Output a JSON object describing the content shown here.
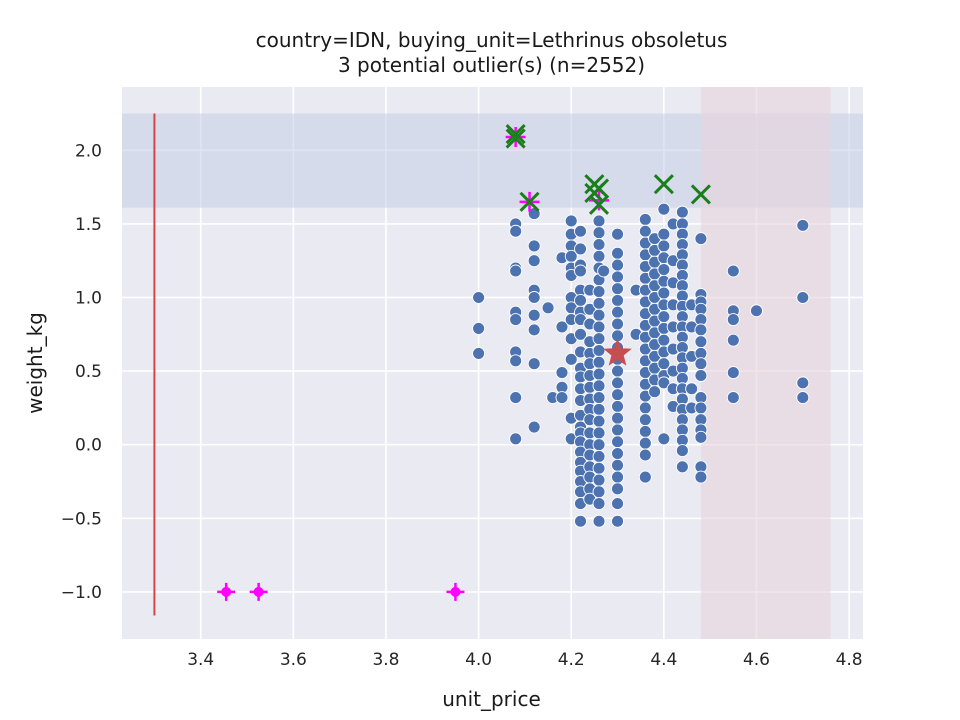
{
  "chart_data": {
    "type": "scatter",
    "title": "country=IDN, buying_unit=Lethrinus obsoletus",
    "subtitle": "3 potential outlier(s) (n=2552)",
    "xlabel": "unit_price",
    "ylabel": "weight_kg",
    "xlim": [
      3.23,
      4.83
    ],
    "ylim": [
      -1.32,
      2.43
    ],
    "xticks": [
      3.4,
      3.6,
      3.8,
      4.0,
      4.2,
      4.4,
      4.6,
      4.8
    ],
    "yticks": [
      -1.0,
      -0.5,
      0.0,
      0.5,
      1.0,
      1.5,
      2.0
    ],
    "xtick_labels": [
      "3.4",
      "3.6",
      "3.8",
      "4.0",
      "4.2",
      "4.4",
      "4.6",
      "4.8"
    ],
    "ytick_labels": [
      "−1.0",
      "−0.5",
      "0.0",
      "0.5",
      "1.0",
      "1.5",
      "2.0"
    ],
    "grid": true,
    "colors": {
      "background": "#eaeaf2",
      "points": "#4c72b0",
      "outlier_x": "#1a7f1a",
      "magenta": "#ff00ff",
      "star": "#c44e52",
      "vline": "#d64545",
      "y_band": "#c5cde6",
      "x_band": "#e8d4dc"
    },
    "y_band": [
      1.61,
      2.25
    ],
    "x_band": [
      4.48,
      4.76
    ],
    "vline": {
      "x": 3.3,
      "y": [
        -1.16,
        2.25
      ]
    },
    "star": {
      "x": 4.3,
      "y": 0.62
    },
    "series": [
      {
        "kind": "points",
        "columns": [
          {
            "x": 4.0,
            "y": [
              1.0,
              0.79,
              0.62
            ]
          },
          {
            "x": 4.08,
            "y": [
              1.5,
              1.45,
              1.2,
              1.18,
              0.9,
              0.85,
              0.63,
              0.57,
              0.32,
              0.04
            ]
          },
          {
            "x": 4.12,
            "y": [
              1.57,
              1.35,
              1.25,
              1.05,
              1.0,
              0.88,
              0.78,
              0.55,
              0.12
            ]
          },
          {
            "x": 4.15,
            "y": [
              0.93
            ]
          },
          {
            "x": 4.16,
            "y": [
              0.32
            ]
          },
          {
            "x": 4.18,
            "y": [
              1.27,
              0.8,
              0.49,
              0.39,
              0.32
            ]
          },
          {
            "x": 4.2,
            "y": [
              1.52,
              1.43,
              1.35,
              1.28,
              1.2,
              1.15,
              1.0,
              0.93,
              0.85,
              0.72,
              0.58,
              0.18,
              0.04
            ]
          },
          {
            "x": 4.22,
            "y": [
              1.45,
              1.33,
              1.22,
              1.18,
              1.05,
              0.98,
              0.9,
              0.85,
              0.75,
              0.63,
              0.52,
              0.46,
              0.38,
              0.3,
              0.2,
              0.12,
              0.08,
              0.02,
              -0.05,
              -0.12,
              -0.18,
              -0.25,
              -0.32,
              -0.4,
              -0.52
            ]
          },
          {
            "x": 4.24,
            "y": [
              1.05,
              0.92,
              0.82,
              0.7,
              0.62,
              0.55,
              0.47,
              0.39,
              0.31,
              0.24,
              0.17,
              0.08,
              0.0,
              -0.07,
              -0.15,
              -0.22,
              -0.3,
              -0.37
            ]
          },
          {
            "x": 4.26,
            "y": [
              1.52,
              1.44,
              1.36,
              1.28,
              1.2,
              1.12,
              1.04,
              0.96,
              0.88,
              0.8,
              0.72,
              0.64,
              0.56,
              0.48,
              0.4,
              0.32,
              0.24,
              0.16,
              0.08,
              0.0,
              -0.08,
              -0.16,
              -0.24,
              -0.32,
              -0.4,
              -0.52
            ]
          },
          {
            "x": 4.27,
            "y": [
              1.18
            ]
          },
          {
            "x": 4.3,
            "y": [
              1.43,
              1.3,
              1.22,
              1.14,
              1.06,
              0.98,
              0.9,
              0.82,
              0.74,
              0.66,
              0.58,
              0.5,
              0.42,
              0.34,
              0.26,
              0.18,
              0.1,
              0.02,
              -0.06,
              -0.14,
              -0.22,
              -0.3,
              -0.4,
              -0.52
            ]
          },
          {
            "x": 4.34,
            "y": [
              1.05,
              0.75
            ]
          },
          {
            "x": 4.36,
            "y": [
              1.53,
              1.45,
              1.37,
              1.29,
              1.21,
              1.13,
              1.05,
              0.97,
              0.89,
              0.81,
              0.73,
              0.65,
              0.57,
              0.49,
              0.41,
              0.33,
              0.25,
              0.17,
              0.09,
              0.01,
              -0.07,
              -0.22
            ]
          },
          {
            "x": 4.38,
            "y": [
              1.4,
              1.32,
              1.24,
              1.16,
              1.08,
              1.0,
              0.92,
              0.84,
              0.76,
              0.68,
              0.6,
              0.52,
              0.44,
              0.36
            ]
          },
          {
            "x": 4.4,
            "y": [
              1.6,
              1.43,
              1.35,
              1.27,
              1.19,
              1.11,
              1.03,
              0.95,
              0.87,
              0.79,
              0.71,
              0.63,
              0.55,
              0.47,
              0.42,
              0.04
            ]
          },
          {
            "x": 4.42,
            "y": [
              1.5,
              1.25,
              1.1,
              0.95,
              0.8,
              0.65,
              0.5,
              0.38,
              0.26
            ]
          },
          {
            "x": 4.44,
            "y": [
              1.58,
              1.5,
              1.43,
              1.36,
              1.29,
              1.22,
              1.15,
              1.08,
              1.01,
              0.94,
              0.87,
              0.8,
              0.73,
              0.66,
              0.59,
              0.52,
              0.45,
              0.38,
              0.31,
              0.24,
              0.17,
              0.1,
              0.03,
              -0.04,
              -0.15
            ]
          },
          {
            "x": 4.46,
            "y": [
              0.95,
              0.8,
              0.6,
              0.38,
              0.25
            ]
          },
          {
            "x": 4.48,
            "y": [
              1.4,
              1.02,
              0.97,
              0.92,
              0.85,
              0.78,
              0.7,
              0.62,
              0.55,
              0.47,
              0.32,
              0.25,
              0.17,
              0.1,
              0.05,
              -0.15,
              -0.22
            ]
          },
          {
            "x": 4.55,
            "y": [
              1.18,
              0.91,
              0.85,
              0.71,
              0.49,
              0.32
            ]
          },
          {
            "x": 4.6,
            "y": [
              0.91
            ]
          },
          {
            "x": 4.7,
            "y": [
              1.49,
              1.0,
              0.42,
              0.32
            ]
          }
        ]
      },
      {
        "kind": "x-markers",
        "points": [
          [
            4.08,
            2.11
          ],
          [
            4.08,
            2.08
          ],
          [
            4.11,
            1.65
          ],
          [
            4.25,
            1.77
          ],
          [
            4.26,
            1.74
          ],
          [
            4.25,
            1.71
          ],
          [
            4.26,
            1.63
          ],
          [
            4.4,
            1.77
          ],
          [
            4.48,
            1.7
          ]
        ]
      },
      {
        "kind": "plus-markers",
        "points": [
          [
            4.08,
            2.09
          ],
          [
            4.11,
            1.65
          ],
          [
            4.26,
            1.66
          ]
        ]
      },
      {
        "kind": "error-markers",
        "points": [
          [
            3.455,
            -1.0
          ],
          [
            3.525,
            -1.0
          ],
          [
            3.95,
            -1.0
          ]
        ]
      }
    ]
  }
}
